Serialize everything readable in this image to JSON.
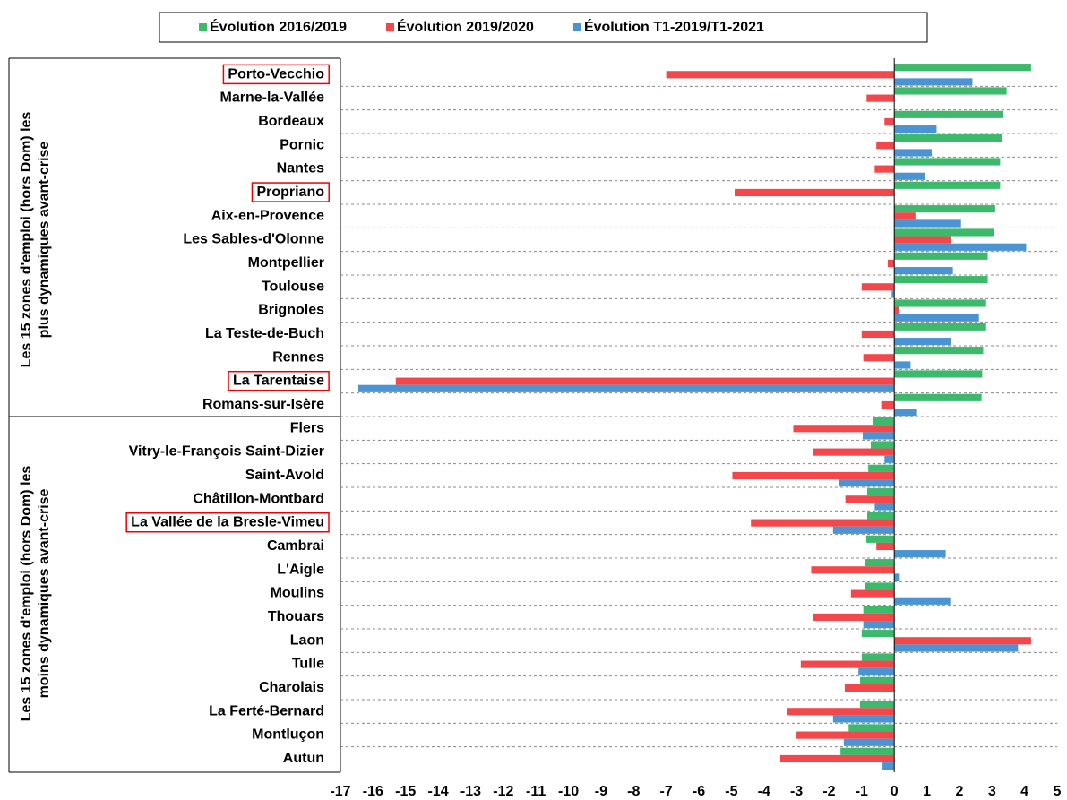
{
  "chart_data": {
    "type": "bar",
    "orientation": "horizontal",
    "categories": [
      "Porto-Vecchio",
      "Marne-la-Vallée",
      "Bordeaux",
      "Pornic",
      "Nantes",
      "Propriano",
      "Aix-en-Provence",
      "Les Sables-d'Olonne",
      "Montpellier",
      "Toulouse",
      "Brignoles",
      "La Teste-de-Buch",
      "Rennes",
      "La Tarentaise",
      "Romans-sur-Isère",
      "Flers",
      "Vitry-le-François Saint-Dizier",
      "Saint-Avold",
      "Châtillon-Montbard",
      "La Vallée de la Bresle-Vimeu",
      "Cambrai",
      "L'Aigle",
      "Moulins",
      "Thouars",
      "Laon",
      "Tulle",
      "Charolais",
      "La Ferté-Bernard",
      "Montluçon",
      "Autun"
    ],
    "series": [
      {
        "name": "Évolution 2016/2019",
        "color": "#3cb96a",
        "values": [
          4.2,
          3.45,
          3.35,
          3.3,
          3.25,
          3.25,
          3.1,
          3.05,
          2.87,
          2.87,
          2.82,
          2.82,
          2.73,
          2.7,
          2.68,
          -0.66,
          -0.72,
          -0.8,
          -0.83,
          -0.83,
          -0.86,
          -0.9,
          -0.9,
          -0.95,
          -1.0,
          -1.0,
          -1.05,
          -1.05,
          -1.4,
          -1.65
        ]
      },
      {
        "name": "Évolution 2019/2020",
        "color": "#f2474b",
        "values": [
          -7.0,
          -0.85,
          -0.3,
          -0.55,
          -0.6,
          -4.9,
          0.65,
          1.75,
          -0.2,
          -1.0,
          0.15,
          -1.0,
          -0.95,
          -15.3,
          -0.4,
          -3.1,
          -2.5,
          -4.97,
          -1.5,
          -4.4,
          -0.55,
          -2.55,
          -1.33,
          -2.5,
          4.2,
          -2.87,
          -1.52,
          -3.3,
          -3.0,
          -3.5
        ]
      },
      {
        "name": "Évolution T1-2019/T1-2021",
        "color": "#4a94d3",
        "values": [
          2.4,
          null,
          1.3,
          1.15,
          0.95,
          null,
          2.05,
          4.05,
          1.8,
          -0.08,
          2.6,
          1.75,
          0.5,
          -16.45,
          0.7,
          -0.97,
          -0.3,
          -1.7,
          -0.6,
          -1.88,
          1.58,
          0.17,
          1.72,
          -0.95,
          3.8,
          -1.1,
          null,
          -1.88,
          -1.55,
          -0.36
        ]
      }
    ],
    "groups": [
      {
        "lines": [
          "Les 15 zones d'emploi (hors Dom) les",
          "plus dynamiques avant-crise"
        ]
      },
      {
        "lines": [
          "Les 15 zones d'emploi (hors Dom) les",
          "moins dynamiques avant-crise"
        ]
      }
    ],
    "highlighted": [
      0,
      5,
      13,
      19
    ],
    "xlim": [
      -17,
      5
    ],
    "xticks": [
      -17,
      -16,
      -15,
      -14,
      -13,
      -12,
      -11,
      -10,
      -9,
      -8,
      -7,
      -6,
      -5,
      -4,
      -3,
      -2,
      -1,
      0,
      1,
      2,
      3,
      4,
      5
    ],
    "grid": true,
    "legend": "top"
  }
}
